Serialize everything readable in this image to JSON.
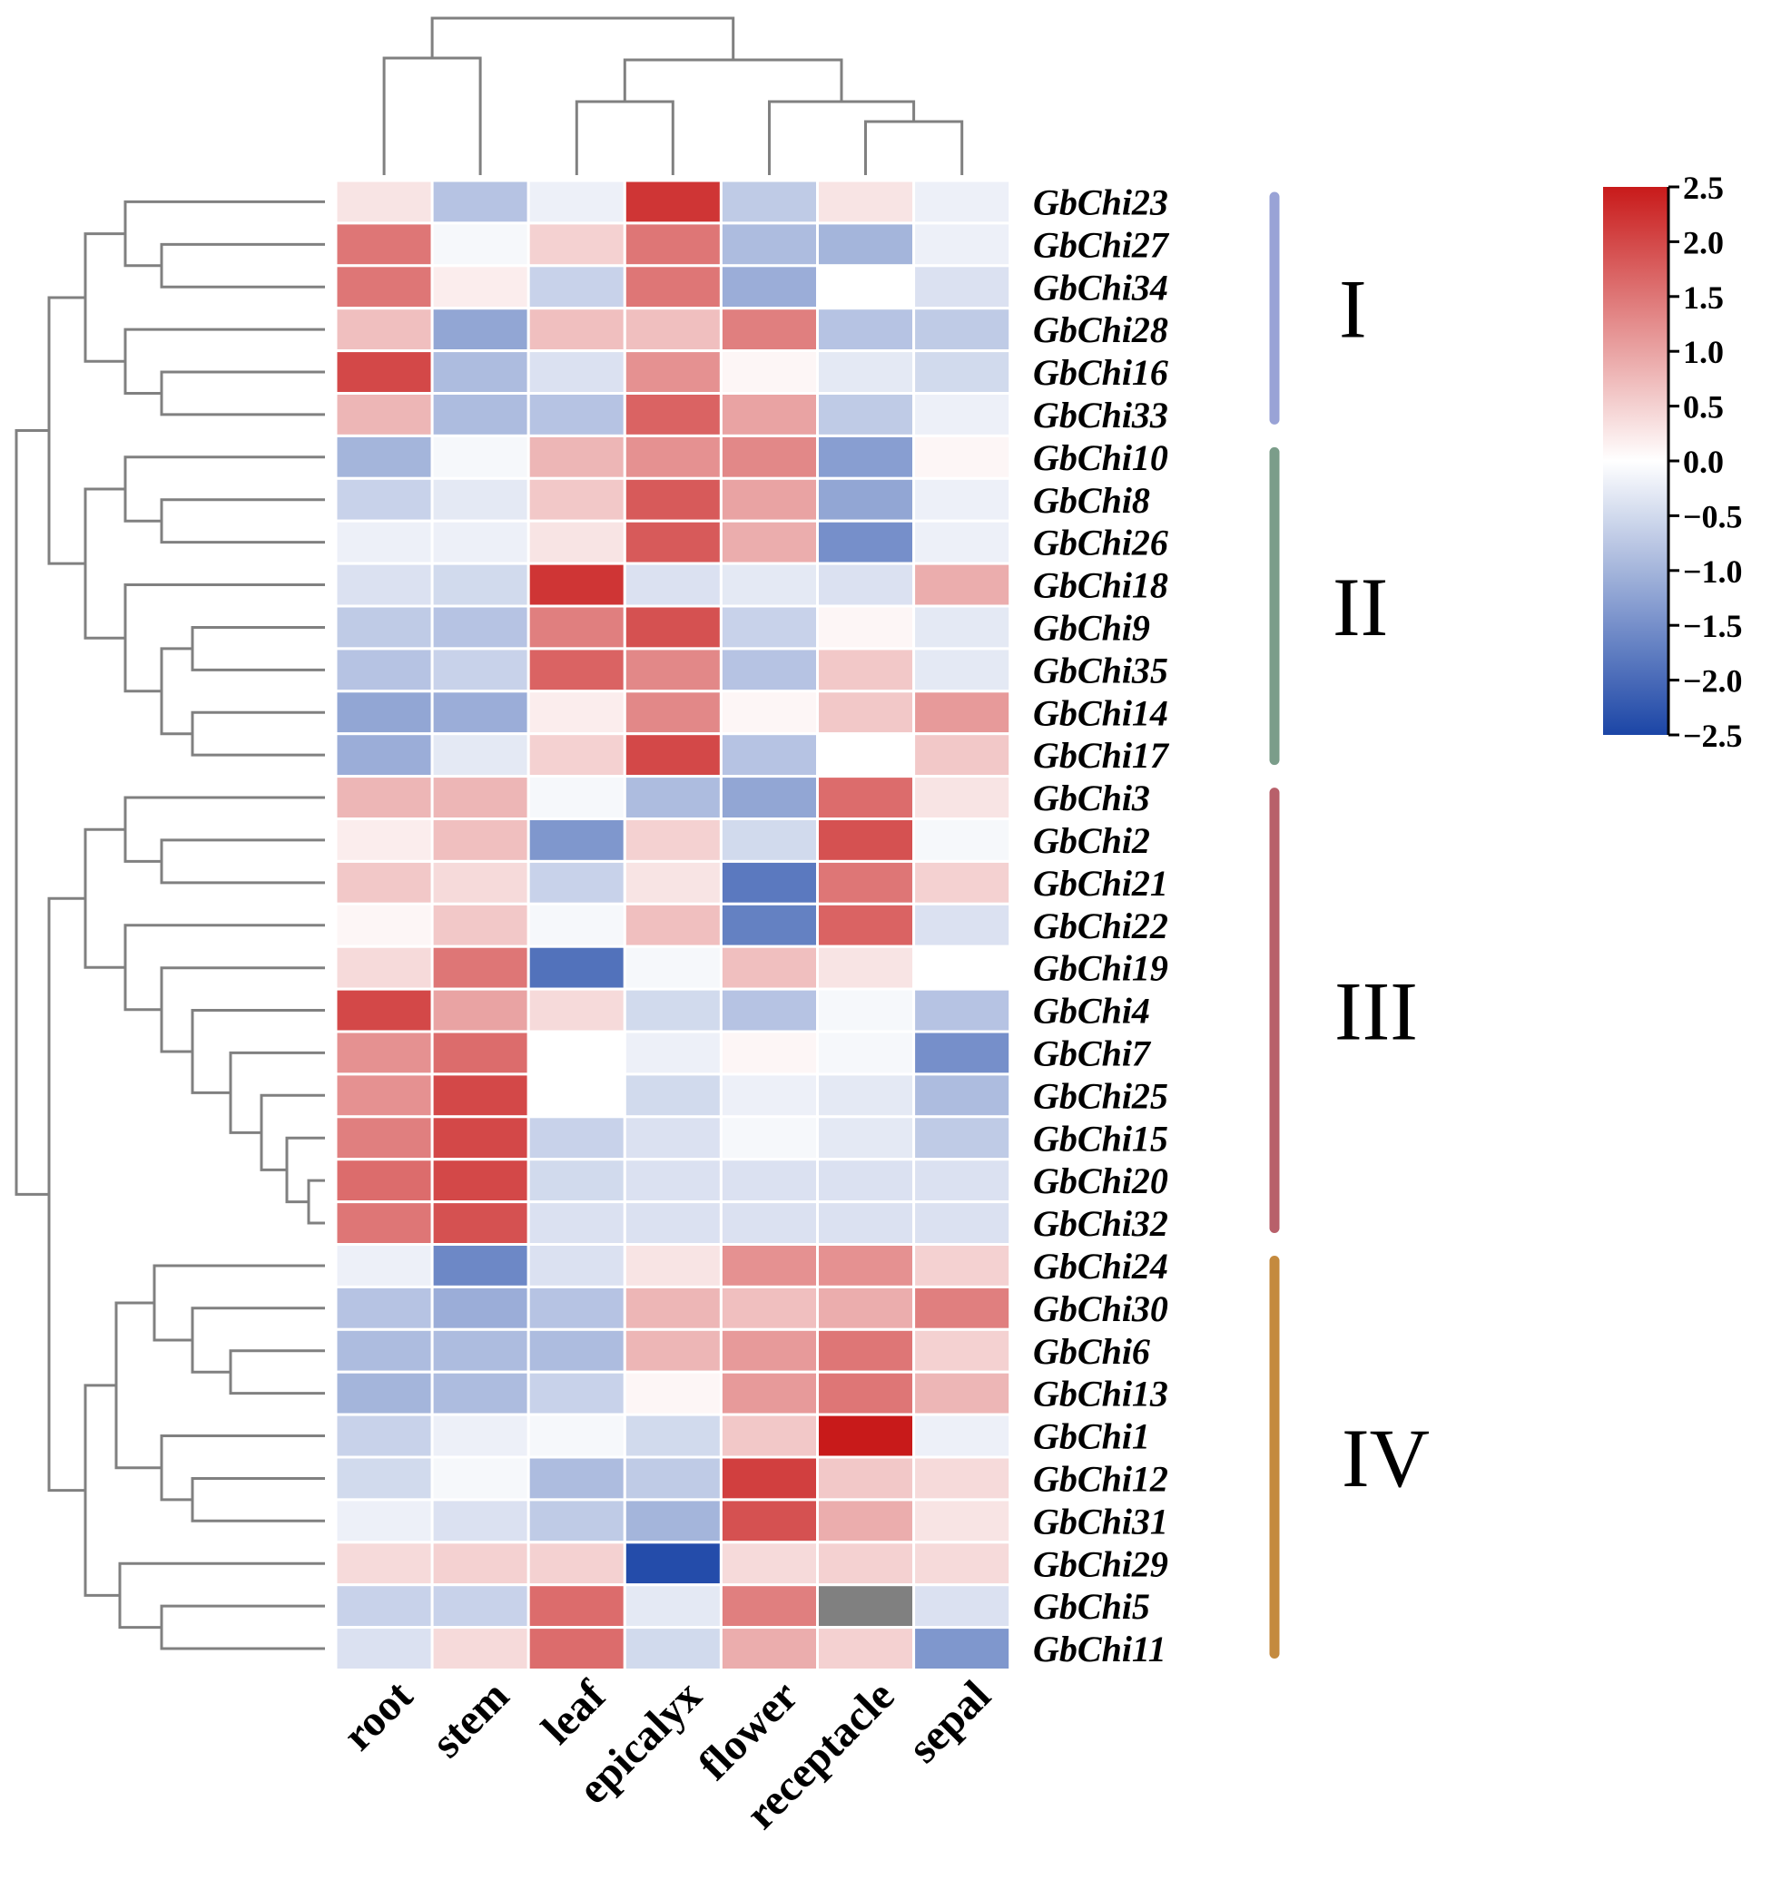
{
  "chart_data": {
    "type": "heatmap",
    "title": "",
    "columns": [
      "root",
      "stem",
      "leaf",
      "epicalyx",
      "flower",
      "receptacle",
      "sepal"
    ],
    "rows": [
      "GbChi23",
      "GbChi27",
      "GbChi34",
      "GbChi28",
      "GbChi16",
      "GbChi33",
      "GbChi10",
      "GbChi8",
      "GbChi26",
      "GbChi18",
      "GbChi9",
      "GbChi35",
      "GbChi14",
      "GbChi17",
      "GbChi3",
      "GbChi2",
      "GbChi21",
      "GbChi22",
      "GbChi19",
      "GbChi4",
      "GbChi7",
      "GbChi25",
      "GbChi15",
      "GbChi20",
      "GbChi32",
      "GbChi24",
      "GbChi30",
      "GbChi6",
      "GbChi13",
      "GbChi1",
      "GbChi12",
      "GbChi31",
      "GbChi29",
      "GbChi5",
      "GbChi11"
    ],
    "values": [
      [
        0.3,
        -0.8,
        -0.2,
        2.2,
        -0.7,
        0.3,
        -0.2
      ],
      [
        1.5,
        -0.1,
        0.5,
        1.5,
        -0.9,
        -1.0,
        -0.2
      ],
      [
        1.5,
        0.2,
        -0.6,
        1.5,
        -1.1,
        0.0,
        -0.4
      ],
      [
        0.7,
        -1.2,
        0.7,
        0.7,
        1.4,
        -0.8,
        -0.7
      ],
      [
        2.0,
        -0.9,
        -0.4,
        1.2,
        0.1,
        -0.3,
        -0.5
      ],
      [
        0.8,
        -0.9,
        -0.8,
        1.7,
        1.0,
        -0.7,
        -0.2
      ],
      [
        -1.0,
        -0.1,
        0.8,
        1.2,
        1.3,
        -1.3,
        0.1
      ],
      [
        -0.6,
        -0.3,
        0.6,
        1.8,
        1.0,
        -1.2,
        -0.2
      ],
      [
        -0.2,
        -0.2,
        0.3,
        1.8,
        0.9,
        -1.5,
        -0.2
      ],
      [
        -0.4,
        -0.5,
        2.2,
        -0.4,
        -0.3,
        -0.4,
        0.9
      ],
      [
        -0.7,
        -0.8,
        1.4,
        1.9,
        -0.6,
        0.1,
        -0.3
      ],
      [
        -0.8,
        -0.6,
        1.7,
        1.3,
        -0.8,
        0.6,
        -0.3
      ],
      [
        -1.2,
        -1.1,
        0.2,
        1.3,
        0.1,
        0.6,
        1.1
      ],
      [
        -1.1,
        -0.3,
        0.5,
        2.0,
        -0.8,
        0.0,
        0.6
      ],
      [
        0.8,
        0.8,
        -0.1,
        -0.9,
        -1.2,
        1.6,
        0.3
      ],
      [
        0.2,
        0.7,
        -1.4,
        0.5,
        -0.5,
        1.9,
        -0.1
      ],
      [
        0.6,
        0.4,
        -0.6,
        0.3,
        -1.8,
        1.5,
        0.5
      ],
      [
        0.1,
        0.6,
        -0.1,
        0.7,
        -1.7,
        1.7,
        -0.4
      ],
      [
        0.4,
        1.5,
        -1.9,
        -0.1,
        0.7,
        0.3,
        0.0
      ],
      [
        2.0,
        1.0,
        0.4,
        -0.5,
        -0.8,
        -0.1,
        -0.8
      ],
      [
        1.2,
        1.6,
        0.0,
        -0.2,
        0.1,
        -0.1,
        -1.5
      ],
      [
        1.2,
        2.0,
        0.0,
        -0.5,
        -0.2,
        -0.3,
        -0.9
      ],
      [
        1.4,
        2.0,
        -0.6,
        -0.4,
        -0.1,
        -0.3,
        -0.7
      ],
      [
        1.6,
        2.0,
        -0.5,
        -0.4,
        -0.4,
        -0.4,
        -0.4
      ],
      [
        1.5,
        1.9,
        -0.4,
        -0.4,
        -0.4,
        -0.4,
        -0.4
      ],
      [
        -0.2,
        -1.6,
        -0.4,
        0.3,
        1.2,
        1.2,
        0.5
      ],
      [
        -0.8,
        -1.1,
        -0.8,
        0.8,
        0.7,
        0.9,
        1.4
      ],
      [
        -0.9,
        -0.9,
        -0.9,
        0.8,
        1.1,
        1.5,
        0.5
      ],
      [
        -1.0,
        -0.9,
        -0.6,
        0.1,
        1.1,
        1.5,
        0.8
      ],
      [
        -0.6,
        -0.2,
        -0.1,
        -0.5,
        0.6,
        2.5,
        -0.2
      ],
      [
        -0.5,
        -0.1,
        -0.9,
        -0.7,
        2.1,
        0.6,
        0.4
      ],
      [
        -0.2,
        -0.4,
        -0.7,
        -1.0,
        1.9,
        0.9,
        0.3
      ],
      [
        0.4,
        0.5,
        0.5,
        -2.4,
        0.4,
        0.5,
        0.4
      ],
      [
        -0.6,
        -0.6,
        1.6,
        -0.3,
        1.4,
        null,
        -0.4
      ],
      [
        -0.4,
        0.4,
        1.6,
        -0.5,
        0.9,
        0.5,
        -1.4
      ]
    ],
    "missing_color": "#808080",
    "colormap": {
      "low": "#1b45a6",
      "mid": "#ffffff",
      "high": "#c81a1a"
    },
    "vrange": [
      -2.5,
      2.5
    ],
    "colorbar": {
      "ticks": [
        2.5,
        2.0,
        1.5,
        1.0,
        0.5,
        0.0,
        -0.5,
        -1.0,
        -1.5,
        -2.0,
        -2.5
      ],
      "tick_labels": [
        "2.5",
        "2.0",
        "1.5",
        "1.0",
        "0.5",
        "0.0",
        "−0.5",
        "−1.0",
        "−1.5",
        "−2.0",
        "−2.5"
      ]
    },
    "clusters": [
      {
        "label": "I",
        "rows": [
          0,
          5
        ],
        "color": "#99a3d6"
      },
      {
        "label": "II",
        "rows": [
          6,
          13
        ],
        "color": "#7b9d8a"
      },
      {
        "label": "III",
        "rows": [
          14,
          24
        ],
        "color": "#b8606a"
      },
      {
        "label": "IV",
        "rows": [
          25,
          34
        ],
        "color": "#c48a3e"
      }
    ]
  }
}
